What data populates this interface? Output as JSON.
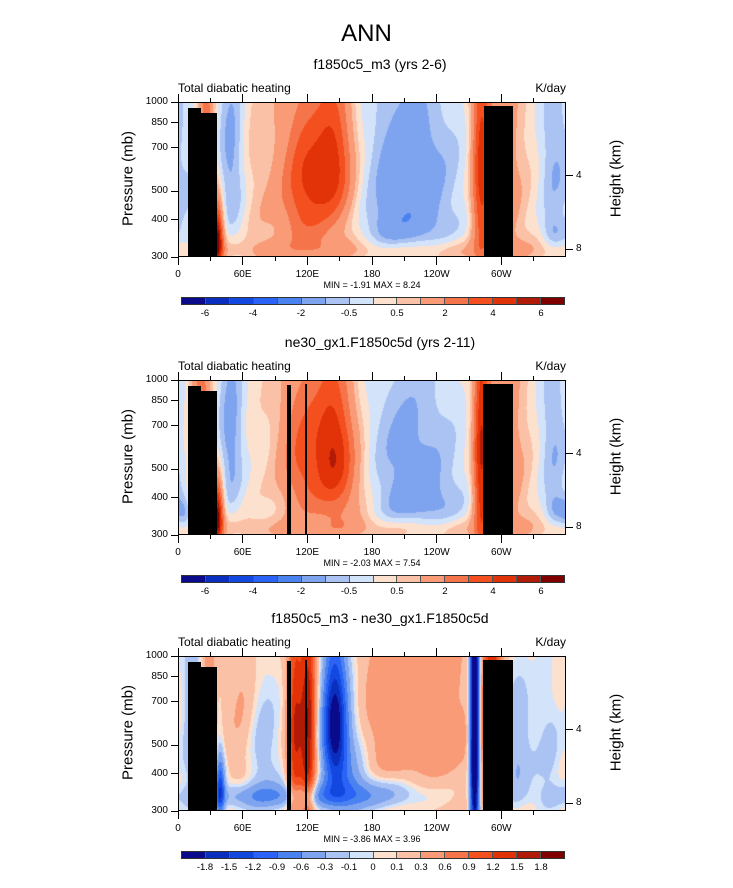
{
  "main_title": "ANN",
  "colors": {
    "palette16": [
      "#0a0a8c",
      "#0a2fbe",
      "#1248e0",
      "#2a63f5",
      "#4a82f0",
      "#7fa4ef",
      "#abc3f2",
      "#d3e3fa",
      "#fde1cf",
      "#fbc1a6",
      "#f89b76",
      "#f57449",
      "#f4501f",
      "#e13307",
      "#b11a06",
      "#800000"
    ],
    "topography": "#000000"
  },
  "chart_data": [
    {
      "type": "heatmap",
      "title": "f1850c5_m3 (yrs 2-6)",
      "left_string": "Total diabatic heating",
      "right_string": "K/day",
      "ylabel": "Pressure (mb)",
      "ylabel_right": "Height (km)",
      "yticks": [
        "300",
        "400",
        "500",
        "700",
        "850",
        "1000"
      ],
      "ytick_values": [
        300,
        400,
        500,
        700,
        850,
        1000
      ],
      "yticks_right": [
        "8",
        "4"
      ],
      "yticks_right_values": [
        8,
        4
      ],
      "xticks": [
        "0",
        "60E",
        "120E",
        "180",
        "120W",
        "60W"
      ],
      "xtick_values": [
        0,
        60,
        120,
        180,
        240,
        300
      ],
      "xlim": [
        0,
        360
      ],
      "ylim": [
        1000,
        300
      ],
      "minmax_label": "MIN =  -1.91   MAX =   8.24",
      "min": -1.91,
      "max": 8.24,
      "levels": [
        -6,
        -5,
        -4,
        -3,
        -2,
        -1,
        -0.5,
        0,
        0.5,
        1,
        2,
        3,
        4,
        5,
        6
      ],
      "colorbar_labels": [
        "-6",
        "-4",
        "-2",
        "-0.5",
        "0.5",
        "2",
        "4",
        "6"
      ],
      "colorbar_label_positions": [
        1,
        3,
        5,
        7,
        9,
        11,
        13,
        15
      ],
      "background": 0.3,
      "features": [
        {
          "lon": 10,
          "p": 700,
          "wl": 8,
          "wp": 400,
          "v": -0.6
        },
        {
          "lon": 25,
          "p": 500,
          "wl": 5,
          "wp": 300,
          "v": 2.5
        },
        {
          "lon": 35,
          "p": 880,
          "wl": 4,
          "wp": 150,
          "v": 6.5
        },
        {
          "lon": 48,
          "p": 450,
          "wl": 9,
          "wp": 250,
          "v": -1.5
        },
        {
          "lon": 55,
          "p": 800,
          "wl": 10,
          "wp": 300,
          "v": -0.4
        },
        {
          "lon": 75,
          "p": 600,
          "wl": 20,
          "wp": 400,
          "v": 0.5
        },
        {
          "lon": 118,
          "p": 520,
          "wl": 15,
          "wp": 220,
          "v": 3.0
        },
        {
          "lon": 145,
          "p": 460,
          "wl": 12,
          "wp": 180,
          "v": 3.5
        },
        {
          "lon": 130,
          "p": 750,
          "wl": 25,
          "wp": 200,
          "v": 1.2
        },
        {
          "lon": 225,
          "p": 480,
          "wl": 30,
          "wp": 200,
          "v": -1.4
        },
        {
          "lon": 215,
          "p": 800,
          "wl": 35,
          "wp": 120,
          "v": -1.1
        },
        {
          "lon": 200,
          "p": 600,
          "wl": 25,
          "wp": 400,
          "v": -0.8
        },
        {
          "lon": 282,
          "p": 500,
          "wl": 6,
          "wp": 350,
          "v": 3.8
        },
        {
          "lon": 300,
          "p": 600,
          "wl": 14,
          "wp": 400,
          "v": 1.6
        },
        {
          "lon": 350,
          "p": 460,
          "wl": 10,
          "wp": 250,
          "v": -1.3
        },
        {
          "lon": 350,
          "p": 830,
          "wl": 8,
          "wp": 80,
          "v": -1.0
        },
        {
          "lon": 180,
          "p": 960,
          "wl": 180,
          "wp": 60,
          "v": 0.8
        }
      ],
      "topography": [
        {
          "lon0": 8,
          "lon1": 20,
          "p_top": 960
        },
        {
          "lon0": 20,
          "lon1": 35,
          "p_top": 925
        },
        {
          "lon0": 283,
          "lon1": 310,
          "p_top": 975
        }
      ]
    },
    {
      "type": "heatmap",
      "title": "ne30_gx1.F1850c5d (yrs 2-11)",
      "left_string": "Total diabatic heating",
      "right_string": "K/day",
      "ylabel": "Pressure (mb)",
      "ylabel_right": "Height (km)",
      "yticks": [
        "300",
        "400",
        "500",
        "700",
        "850",
        "1000"
      ],
      "ytick_values": [
        300,
        400,
        500,
        700,
        850,
        1000
      ],
      "yticks_right": [
        "8",
        "4"
      ],
      "yticks_right_values": [
        8,
        4
      ],
      "xticks": [
        "0",
        "60E",
        "120E",
        "180",
        "120W",
        "60W"
      ],
      "xtick_values": [
        0,
        60,
        120,
        180,
        240,
        300
      ],
      "xlim": [
        0,
        360
      ],
      "ylim": [
        1000,
        300
      ],
      "minmax_label": "MIN =  -2.03   MAX =   7.54",
      "min": -2.03,
      "max": 7.54,
      "levels": [
        -6,
        -5,
        -4,
        -3,
        -2,
        -1,
        -0.5,
        0,
        0.5,
        1,
        2,
        3,
        4,
        5,
        6
      ],
      "colorbar_labels": [
        "-6",
        "-4",
        "-2",
        "-0.5",
        "0.5",
        "2",
        "4",
        "6"
      ],
      "colorbar_label_positions": [
        1,
        3,
        5,
        7,
        9,
        11,
        13,
        15
      ],
      "background": 0.3,
      "features": [
        {
          "lon": 5,
          "p": 850,
          "wl": 6,
          "wp": 80,
          "v": -1.2
        },
        {
          "lon": 20,
          "p": 500,
          "wl": 6,
          "wp": 350,
          "v": 2.4
        },
        {
          "lon": 35,
          "p": 870,
          "wl": 4,
          "wp": 150,
          "v": 6.5
        },
        {
          "lon": 48,
          "p": 470,
          "wl": 9,
          "wp": 260,
          "v": -1.6
        },
        {
          "lon": 115,
          "p": 520,
          "wl": 15,
          "wp": 230,
          "v": 2.6
        },
        {
          "lon": 145,
          "p": 480,
          "wl": 13,
          "wp": 200,
          "v": 3.8
        },
        {
          "lon": 150,
          "p": 720,
          "wl": 22,
          "wp": 200,
          "v": 1.5
        },
        {
          "lon": 215,
          "p": 520,
          "wl": 35,
          "wp": 250,
          "v": -1.5
        },
        {
          "lon": 225,
          "p": 800,
          "wl": 35,
          "wp": 120,
          "v": -1.0
        },
        {
          "lon": 282,
          "p": 550,
          "wl": 5,
          "wp": 400,
          "v": 4.2
        },
        {
          "lon": 300,
          "p": 600,
          "wl": 15,
          "wp": 400,
          "v": 1.8
        },
        {
          "lon": 350,
          "p": 460,
          "wl": 10,
          "wp": 250,
          "v": -1.3
        },
        {
          "lon": 352,
          "p": 820,
          "wl": 8,
          "wp": 80,
          "v": -1.1
        },
        {
          "lon": 180,
          "p": 960,
          "wl": 180,
          "wp": 60,
          "v": 0.7
        }
      ],
      "topography": [
        {
          "lon0": 8,
          "lon1": 20,
          "p_top": 960
        },
        {
          "lon0": 20,
          "lon1": 35,
          "p_top": 925
        },
        {
          "lon0": 100,
          "lon1": 104,
          "p_top": 970
        },
        {
          "lon0": 117,
          "lon1": 119,
          "p_top": 975
        },
        {
          "lon0": 282,
          "lon1": 310,
          "p_top": 975
        }
      ]
    },
    {
      "type": "heatmap",
      "title": "f1850c5_m3 - ne30_gx1.F1850c5d",
      "left_string": "Total diabatic heating",
      "right_string": "K/day",
      "ylabel": "Pressure (mb)",
      "ylabel_right": "Height (km)",
      "yticks": [
        "300",
        "400",
        "500",
        "700",
        "850",
        "1000"
      ],
      "ytick_values": [
        300,
        400,
        500,
        700,
        850,
        1000
      ],
      "yticks_right": [
        "8",
        "4"
      ],
      "yticks_right_values": [
        8,
        4
      ],
      "xticks": [
        "0",
        "60E",
        "120E",
        "180",
        "120W",
        "60W"
      ],
      "xtick_values": [
        0,
        60,
        120,
        180,
        240,
        300
      ],
      "xlim": [
        0,
        360
      ],
      "ylim": [
        1000,
        300
      ],
      "minmax_label": "MIN =  -3.86   MAX =   3.96",
      "min": -3.86,
      "max": 3.96,
      "levels": [
        -1.8,
        -1.5,
        -1.2,
        -0.9,
        -0.6,
        -0.3,
        -0.1,
        0,
        0.1,
        0.3,
        0.6,
        0.9,
        1.2,
        1.5,
        1.8
      ],
      "colorbar_labels": [
        "-1.8",
        "-1.5",
        "-1.2",
        "-0.9",
        "-0.6",
        "-0.3",
        "-0.1",
        "0",
        "0.1",
        "0.3",
        "0.6",
        "0.9",
        "1.2",
        "1.5",
        "1.8"
      ],
      "colorbar_label_positions": [
        1,
        2,
        3,
        4,
        5,
        6,
        7,
        8,
        9,
        10,
        11,
        12,
        13,
        14,
        15
      ],
      "background": 0.15,
      "features": [
        {
          "lon": 12,
          "p": 500,
          "wl": 6,
          "wp": 300,
          "v": -0.5
        },
        {
          "lon": 28,
          "p": 650,
          "wl": 3,
          "wp": 300,
          "v": 0.7
        },
        {
          "lon": 38,
          "p": 850,
          "wl": 3,
          "wp": 150,
          "v": -1.4
        },
        {
          "lon": 60,
          "p": 500,
          "wl": 10,
          "wp": 300,
          "v": 0.3
        },
        {
          "lon": 75,
          "p": 650,
          "wl": 15,
          "wp": 300,
          "v": -0.4
        },
        {
          "lon": 108,
          "p": 560,
          "wl": 5,
          "wp": 350,
          "v": 1.3
        },
        {
          "lon": 120,
          "p": 560,
          "wl": 5,
          "wp": 350,
          "v": 1.6
        },
        {
          "lon": 145,
          "p": 500,
          "wl": 8,
          "wp": 200,
          "v": -2.0
        },
        {
          "lon": 155,
          "p": 700,
          "wl": 15,
          "wp": 250,
          "v": -0.7
        },
        {
          "lon": 90,
          "p": 900,
          "wl": 60,
          "wp": 60,
          "v": -0.6
        },
        {
          "lon": 210,
          "p": 500,
          "wl": 45,
          "wp": 250,
          "v": 0.4
        },
        {
          "lon": 180,
          "p": 880,
          "wl": 40,
          "wp": 80,
          "v": -0.5
        },
        {
          "lon": 276,
          "p": 550,
          "wl": 3,
          "wp": 500,
          "v": -3.0
        },
        {
          "lon": 292,
          "p": 550,
          "wl": 6,
          "wp": 350,
          "v": 1.6
        },
        {
          "lon": 315,
          "p": 630,
          "wl": 10,
          "wp": 250,
          "v": -0.5
        },
        {
          "lon": 345,
          "p": 650,
          "wl": 10,
          "wp": 300,
          "v": -0.3
        }
      ],
      "topography": [
        {
          "lon0": 8,
          "lon1": 20,
          "p_top": 960
        },
        {
          "lon0": 20,
          "lon1": 35,
          "p_top": 925
        },
        {
          "lon0": 100,
          "lon1": 104,
          "p_top": 970
        },
        {
          "lon0": 117,
          "lon1": 119,
          "p_top": 975
        },
        {
          "lon0": 282,
          "lon1": 310,
          "p_top": 975
        }
      ]
    }
  ]
}
